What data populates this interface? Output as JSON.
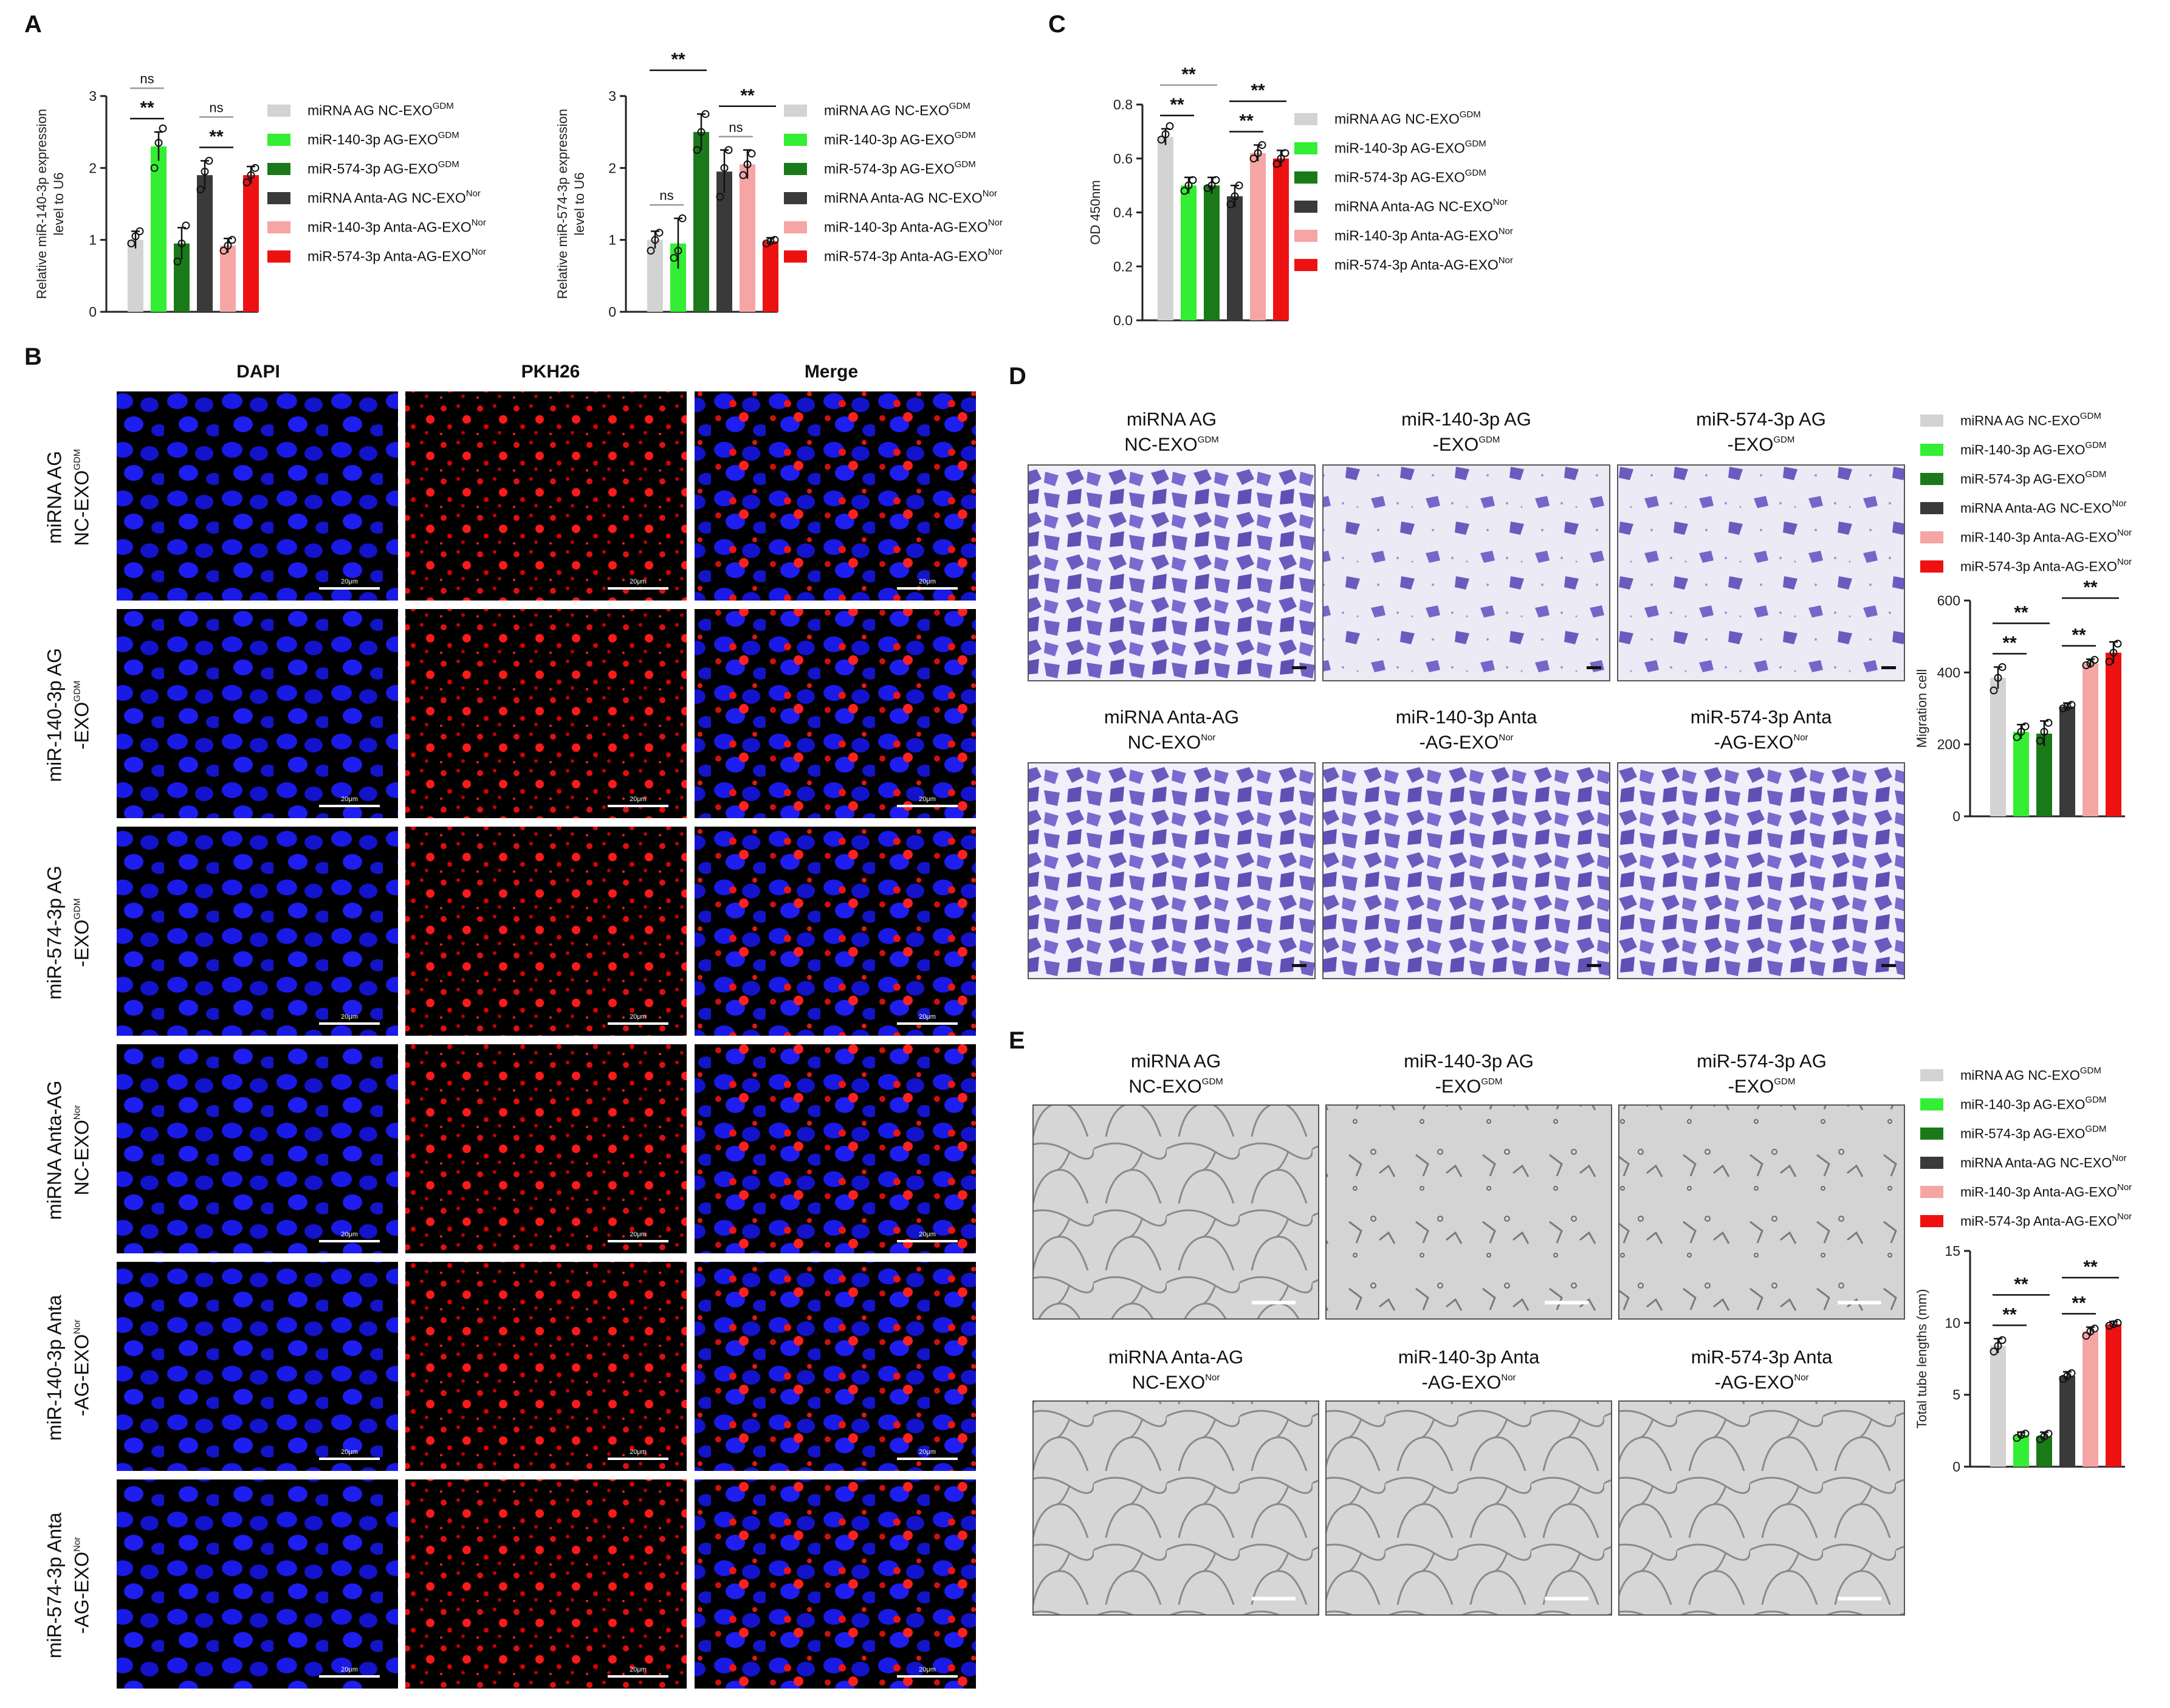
{
  "panels": {
    "A": "A",
    "B": "B",
    "C": "C",
    "D": "D",
    "E": "E"
  },
  "colors": {
    "NC_GDM": "#d3d3d3",
    "m140_GDM": "#33ee33",
    "m574_GDM": "#1a7a1a",
    "NC_Nor": "#3a3a3a",
    "m140_Nor": "#f6a5a5",
    "m574_Nor": "#ee1111"
  },
  "legend": [
    {
      "key": "NC_GDM",
      "pre": "miRNA AG NC-EXO",
      "sup": "GDM"
    },
    {
      "key": "m140_GDM",
      "pre": "miR-140-3p AG-EXO",
      "sup": "GDM"
    },
    {
      "key": "m574_GDM",
      "pre": "miR-574-3p AG-EXO",
      "sup": "GDM"
    },
    {
      "key": "NC_Nor",
      "pre": "miRNA Anta-AG NC-EXO",
      "sup": "Nor"
    },
    {
      "key": "m140_Nor",
      "pre": "miR-140-3p Anta-AG-EXO",
      "sup": "Nor"
    },
    {
      "key": "m574_Nor",
      "pre": "miR-574-3p Anta-AG-EXO",
      "sup": "Nor"
    }
  ],
  "panelB": {
    "columns": [
      "DAPI",
      "PKH26",
      "Merge"
    ],
    "rows": [
      {
        "l1": "miRNA AG",
        "l2": "NC-EXO",
        "sup": "GDM"
      },
      {
        "l1": "miR-140-3p AG",
        "l2": "-EXO",
        "sup": "GDM"
      },
      {
        "l1": "miR-574-3p AG",
        "l2": "-EXO",
        "sup": "GDM"
      },
      {
        "l1": "miRNA Anta-AG",
        "l2": "NC-EXO",
        "sup": "Nor"
      },
      {
        "l1": "miR-140-3p Anta",
        "l2": "-AG-EXO",
        "sup": "Nor"
      },
      {
        "l1": "miR-574-3p Anta",
        "l2": "-AG-EXO",
        "sup": "Nor"
      }
    ],
    "scalebar": "20μm"
  },
  "conditions": [
    {
      "l1": "miRNA AG",
      "l2": "NC-EXO",
      "sup": "GDM"
    },
    {
      "l1": "miR-140-3p AG",
      "l2": "-EXO",
      "sup": "GDM"
    },
    {
      "l1": "miR-574-3p AG",
      "l2": "-EXO",
      "sup": "GDM"
    },
    {
      "l1": "miRNA Anta-AG",
      "l2": "NC-EXO",
      "sup": "Nor"
    },
    {
      "l1": "miR-140-3p Anta",
      "l2": "-AG-EXO",
      "sup": "Nor"
    },
    {
      "l1": "miR-574-3p Anta",
      "l2": "-AG-EXO",
      "sup": "Nor"
    }
  ],
  "chart_data": [
    {
      "id": "A1",
      "type": "bar",
      "ylabel": [
        "Relative miR-140-3p expression",
        "level to U6"
      ],
      "ylim": [
        0,
        3
      ],
      "yticks": [
        0,
        1,
        2,
        3
      ],
      "series_keys": [
        "NC_GDM",
        "m140_GDM",
        "m574_GDM",
        "NC_Nor",
        "m140_Nor",
        "m574_Nor"
      ],
      "values": [
        1.0,
        2.3,
        0.95,
        1.9,
        0.92,
        1.9
      ],
      "errors": [
        0.12,
        0.2,
        0.22,
        0.2,
        0.1,
        0.12
      ],
      "points": [
        [
          0.95,
          1.05,
          1.12
        ],
        [
          2.0,
          2.35,
          2.55
        ],
        [
          0.7,
          0.95,
          1.2
        ],
        [
          1.7,
          1.95,
          2.1
        ],
        [
          0.85,
          0.92,
          1.0
        ],
        [
          1.8,
          1.9,
          2.0
        ]
      ],
      "sig": [
        {
          "a": 0,
          "b": 1,
          "text": "**",
          "level": 0
        },
        {
          "a": 0,
          "b": 1,
          "text": "ns",
          "level": 1,
          "gray": true
        },
        {
          "a": 3,
          "b": 4,
          "text": "**",
          "level": 0
        },
        {
          "a": 3,
          "b": 4,
          "text": "ns",
          "level": 1,
          "gray": true
        }
      ]
    },
    {
      "id": "A2",
      "type": "bar",
      "ylabel": [
        "Relative miR-574-3p expression",
        "level to U6"
      ],
      "ylim": [
        0,
        3
      ],
      "yticks": [
        0,
        1,
        2,
        3
      ],
      "series_keys": [
        "NC_GDM",
        "m140_GDM",
        "m574_GDM",
        "NC_Nor",
        "m140_Nor",
        "m574_Nor"
      ],
      "values": [
        1.0,
        0.95,
        2.5,
        1.95,
        2.05,
        0.98
      ],
      "errors": [
        0.12,
        0.35,
        0.25,
        0.3,
        0.2,
        0.05
      ],
      "points": [
        [
          0.85,
          1.0,
          1.1
        ],
        [
          0.75,
          0.85,
          1.3
        ],
        [
          2.25,
          2.5,
          2.75
        ],
        [
          1.6,
          2.0,
          2.25
        ],
        [
          1.9,
          2.05,
          2.2
        ],
        [
          0.95,
          0.98,
          1.0
        ]
      ],
      "sig": [
        {
          "a": 0,
          "b": 1,
          "text": "ns",
          "level": 0,
          "gray": true
        },
        {
          "a": 0,
          "b": 2,
          "text": "**",
          "level": 1
        },
        {
          "a": 3,
          "b": 4,
          "text": "ns",
          "level": 0,
          "gray": true
        },
        {
          "a": 3,
          "b": 5,
          "text": "**",
          "level": 1
        }
      ]
    },
    {
      "id": "C",
      "type": "bar",
      "ylabel": [
        "OD 450nm"
      ],
      "ylim": [
        0,
        0.8
      ],
      "yticks": [
        0.0,
        0.2,
        0.4,
        0.6,
        0.8
      ],
      "ytick_labels": [
        "0.0",
        "0.2",
        "0.4",
        "0.6",
        "0.8"
      ],
      "series_keys": [
        "NC_GDM",
        "m140_GDM",
        "m574_GDM",
        "NC_Nor",
        "m140_Nor",
        "m574_Nor"
      ],
      "values": [
        0.68,
        0.5,
        0.5,
        0.46,
        0.62,
        0.6
      ],
      "errors": [
        0.03,
        0.03,
        0.03,
        0.04,
        0.03,
        0.03
      ],
      "points": [
        [
          0.67,
          0.69,
          0.72
        ],
        [
          0.48,
          0.5,
          0.52
        ],
        [
          0.49,
          0.5,
          0.52
        ],
        [
          0.43,
          0.46,
          0.5
        ],
        [
          0.6,
          0.62,
          0.65
        ],
        [
          0.58,
          0.6,
          0.62
        ]
      ],
      "sig": [
        {
          "a": 0,
          "b": 1,
          "text": "**",
          "level": 0
        },
        {
          "a": 0,
          "b": 2,
          "text": "**",
          "level": 1,
          "gray": true
        },
        {
          "a": 3,
          "b": 4,
          "text": "**",
          "level": 0
        },
        {
          "a": 3,
          "b": 5,
          "text": "**",
          "level": 1
        }
      ]
    },
    {
      "id": "D",
      "type": "bar",
      "ylabel": [
        "Migration cell"
      ],
      "ylim": [
        0,
        600
      ],
      "yticks": [
        0,
        200,
        400,
        600
      ],
      "series_keys": [
        "NC_GDM",
        "m140_GDM",
        "m574_GDM",
        "NC_Nor",
        "m140_Nor",
        "m574_Nor"
      ],
      "values": [
        385,
        235,
        230,
        305,
        425,
        455
      ],
      "errors": [
        30,
        20,
        35,
        10,
        12,
        30
      ],
      "points": [
        [
          350,
          385,
          415
        ],
        [
          220,
          235,
          250
        ],
        [
          210,
          235,
          260
        ],
        [
          300,
          305,
          310
        ],
        [
          420,
          425,
          435
        ],
        [
          430,
          455,
          480
        ]
      ],
      "sig": [
        {
          "a": 0,
          "b": 1,
          "text": "**",
          "level": 0
        },
        {
          "a": 0,
          "b": 2,
          "text": "**",
          "level": 1
        },
        {
          "a": 3,
          "b": 4,
          "text": "**",
          "level": 0
        },
        {
          "a": 3,
          "b": 5,
          "text": "**",
          "level": 1
        }
      ]
    },
    {
      "id": "E",
      "type": "bar",
      "ylabel": [
        "Total tube lengths (mm)"
      ],
      "ylim": [
        0,
        15
      ],
      "yticks": [
        0,
        5,
        10,
        15
      ],
      "series_keys": [
        "NC_GDM",
        "m140_GDM",
        "m574_GDM",
        "NC_Nor",
        "m140_Nor",
        "m574_Nor"
      ],
      "values": [
        8.4,
        2.2,
        2.1,
        6.3,
        9.4,
        9.9
      ],
      "errors": [
        0.5,
        0.2,
        0.3,
        0.3,
        0.3,
        0.2
      ],
      "points": [
        [
          8.0,
          8.4,
          8.8
        ],
        [
          2.0,
          2.2,
          2.3
        ],
        [
          1.9,
          2.1,
          2.3
        ],
        [
          6.1,
          6.3,
          6.5
        ],
        [
          9.1,
          9.4,
          9.6
        ],
        [
          9.8,
          9.9,
          10.0
        ]
      ],
      "sig": [
        {
          "a": 0,
          "b": 1,
          "text": "**",
          "level": 0
        },
        {
          "a": 0,
          "b": 2,
          "text": "**",
          "level": 1
        },
        {
          "a": 3,
          "b": 4,
          "text": "**",
          "level": 0
        },
        {
          "a": 3,
          "b": 5,
          "text": "**",
          "level": 1
        }
      ]
    }
  ]
}
